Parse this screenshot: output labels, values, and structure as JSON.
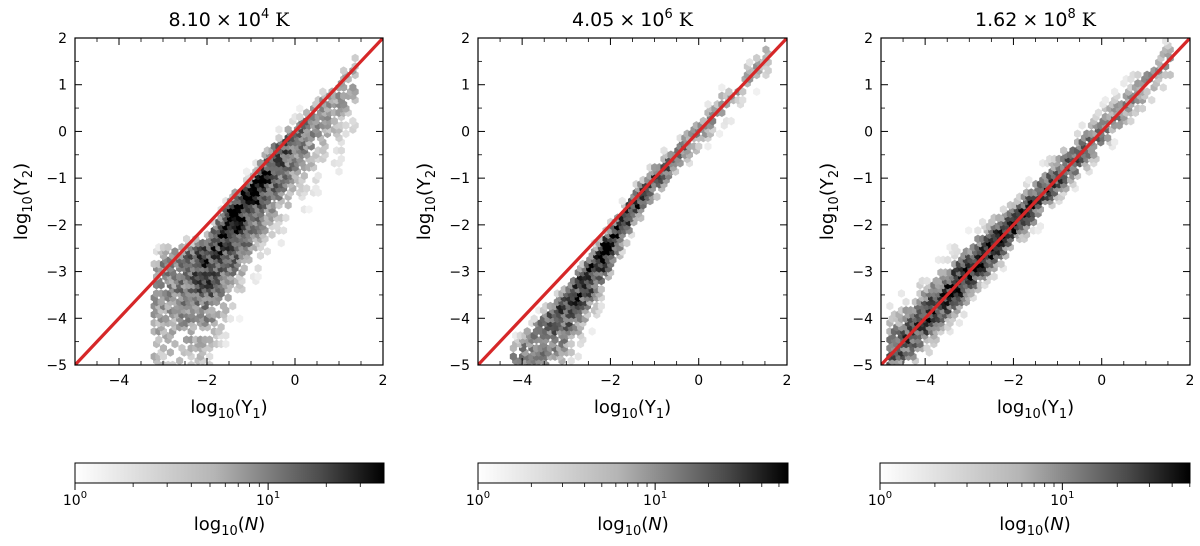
{
  "chart_data": [
    {
      "type": "hexbin",
      "title": {
        "mantissa": "8.10",
        "times": "×",
        "base": "10",
        "exponent": "4",
        "unit": "K"
      },
      "xlabel": {
        "prefix": "log",
        "sub": "10",
        "open": "(Y",
        "var_sub": "1",
        "close": ")"
      },
      "ylabel": {
        "prefix": "log",
        "sub": "10",
        "open": "(Y",
        "var_sub": "2",
        "close": ")"
      },
      "xlim": [
        -5,
        2
      ],
      "ylim": [
        -5,
        2
      ],
      "xticks": [
        -4,
        -2,
        0,
        2
      ],
      "xtick_labels": [
        "−4",
        "−2",
        "0",
        "2"
      ],
      "yticks": [
        -5,
        -4,
        -3,
        -2,
        -1,
        0,
        1,
        2
      ],
      "ytick_labels": [
        "−5",
        "−4",
        "−3",
        "−2",
        "−1",
        "0",
        "1",
        "2"
      ],
      "reference_line": {
        "label": "y = x",
        "x": [
          -5,
          2
        ],
        "y": [
          -5,
          2
        ],
        "color": "#d62728"
      },
      "density_model": {
        "ridge": [
          [
            -3.0,
            -2.8
          ],
          [
            -2.0,
            -2.6
          ],
          [
            -1.5,
            -1.8
          ],
          [
            -1.0,
            -1.3
          ],
          [
            -0.5,
            -0.6
          ],
          [
            0.5,
            0.4
          ],
          [
            1.3,
            1.2
          ]
        ],
        "peak_log10_count": 1.55,
        "x_range": [
          -3.2,
          1.4
        ]
      },
      "colorbar": {
        "cmap": "Greys",
        "log10_range": [
          0,
          1.6
        ],
        "tick_labels": [
          {
            "base": "10",
            "exp": "0",
            "value": 0
          },
          {
            "base": "10",
            "exp": "1",
            "value": 1
          }
        ],
        "label": {
          "prefix": "log",
          "sub": "10",
          "open": "(",
          "var": "N",
          "close": ")"
        }
      }
    },
    {
      "type": "hexbin",
      "title": {
        "mantissa": "4.05",
        "times": "×",
        "base": "10",
        "exponent": "6",
        "unit": "K"
      },
      "xlabel": {
        "prefix": "log",
        "sub": "10",
        "open": "(Y",
        "var_sub": "1",
        "close": ")"
      },
      "ylabel": {
        "prefix": "log",
        "sub": "10",
        "open": "(Y",
        "var_sub": "2",
        "close": ")"
      },
      "xlim": [
        -5,
        2
      ],
      "ylim": [
        -5,
        2
      ],
      "xticks": [
        -4,
        -2,
        0,
        2
      ],
      "xtick_labels": [
        "−4",
        "−2",
        "0",
        "2"
      ],
      "yticks": [
        -5,
        -4,
        -3,
        -2,
        -1,
        0,
        1,
        2
      ],
      "ytick_labels": [
        "−5",
        "−4",
        "−3",
        "−2",
        "−1",
        "0",
        "1",
        "2"
      ],
      "reference_line": {
        "label": "y = x",
        "x": [
          -5,
          2
        ],
        "y": [
          -5,
          2
        ],
        "color": "#d62728"
      },
      "density_model": {
        "ridge": [
          [
            -4.0,
            -4.6
          ],
          [
            -3.0,
            -3.6
          ],
          [
            -2.0,
            -2.3
          ],
          [
            -1.5,
            -1.6
          ],
          [
            -1.0,
            -1.0
          ],
          [
            0.0,
            0.0
          ],
          [
            1.5,
            1.6
          ]
        ],
        "peak_log10_count": 1.75,
        "x_range": [
          -4.2,
          1.6
        ]
      },
      "colorbar": {
        "cmap": "Greys",
        "log10_range": [
          0,
          1.75
        ],
        "tick_labels": [
          {
            "base": "10",
            "exp": "0",
            "value": 0
          },
          {
            "base": "10",
            "exp": "1",
            "value": 1
          }
        ],
        "label": {
          "prefix": "log",
          "sub": "10",
          "open": "(",
          "var": "N",
          "close": ")"
        }
      }
    },
    {
      "type": "hexbin",
      "title": {
        "mantissa": "1.62",
        "times": "×",
        "base": "10",
        "exponent": "8",
        "unit": "K"
      },
      "xlabel": {
        "prefix": "log",
        "sub": "10",
        "open": "(Y",
        "var_sub": "1",
        "close": ")"
      },
      "ylabel": {
        "prefix": "log",
        "sub": "10",
        "open": "(Y",
        "var_sub": "2",
        "close": ")"
      },
      "xlim": [
        -5,
        2
      ],
      "ylim": [
        -5,
        2
      ],
      "xticks": [
        -4,
        -2,
        0,
        2
      ],
      "xtick_labels": [
        "−4",
        "−2",
        "0",
        "2"
      ],
      "yticks": [
        -5,
        -4,
        -3,
        -2,
        -1,
        0,
        1,
        2
      ],
      "ytick_labels": [
        "−5",
        "−4",
        "−3",
        "−2",
        "−1",
        "0",
        "1",
        "2"
      ],
      "reference_line": {
        "label": "y = x",
        "x": [
          -5,
          2
        ],
        "y": [
          -5,
          2
        ],
        "color": "#d62728"
      },
      "density_model": {
        "ridge": [
          [
            -4.7,
            -4.7
          ],
          [
            -3.0,
            -3.0
          ],
          [
            -2.0,
            -2.0
          ],
          [
            -1.0,
            -1.0
          ],
          [
            0.0,
            0.0
          ],
          [
            1.0,
            1.0
          ],
          [
            1.5,
            1.5
          ]
        ],
        "peak_log10_count": 1.7,
        "x_range": [
          -4.8,
          1.6
        ]
      },
      "colorbar": {
        "cmap": "Greys",
        "log10_range": [
          0,
          1.7
        ],
        "tick_labels": [
          {
            "base": "10",
            "exp": "0",
            "value": 0
          },
          {
            "base": "10",
            "exp": "1",
            "value": 1
          }
        ],
        "label": {
          "prefix": "log",
          "sub": "10",
          "open": "(",
          "var": "N",
          "close": ")"
        }
      }
    }
  ]
}
